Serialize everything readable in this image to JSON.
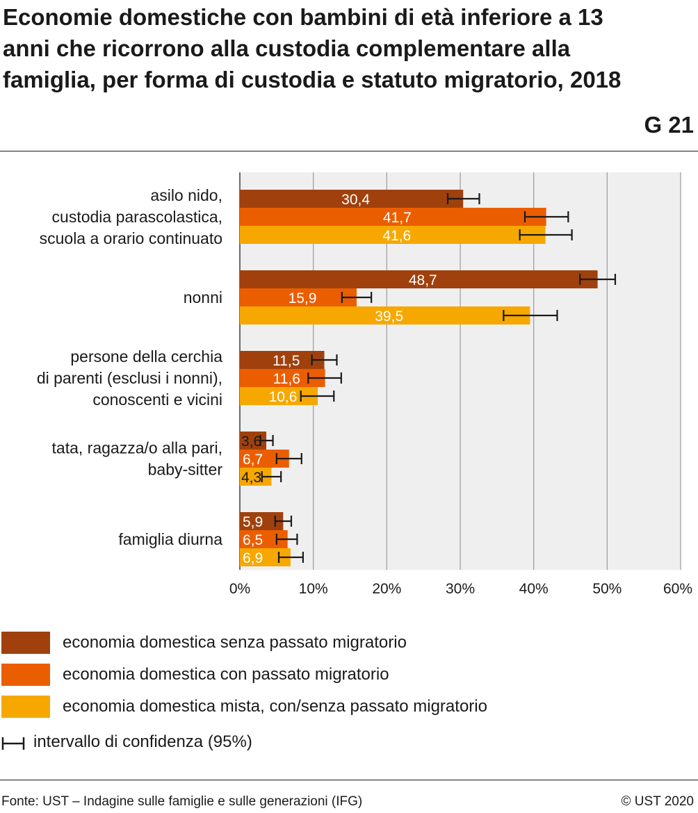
{
  "header": {
    "title": "Economie domestiche con bambini di età inferiore a 13 anni che ricorrono alla custodia complementare alla famiglia, per forma di custodia e statuto migratorio, 2018",
    "code": "G 21"
  },
  "chart_data": {
    "type": "bar",
    "orientation": "horizontal",
    "categories": [
      [
        "asilo nido,",
        "custodia parascolastica,",
        "scuola a orario continuato"
      ],
      [
        "nonni"
      ],
      [
        "persone della cerchia",
        "di parenti (esclusi i nonni),",
        "conoscenti e vicini"
      ],
      [
        "tata, ragazza/o alla pari,",
        "baby-sitter"
      ],
      [
        "famiglia diurna"
      ]
    ],
    "series": [
      {
        "name": "economia domestica senza passato migratorio",
        "color": "#a0410d",
        "values": [
          30.4,
          48.7,
          11.5,
          3.6,
          5.9
        ],
        "labels": [
          "30,4",
          "48,7",
          "11,5",
          "3,6",
          "5,9"
        ],
        "ci_low": [
          28.3,
          46.3,
          9.8,
          2.8,
          4.8
        ],
        "ci_high": [
          32.6,
          51.1,
          13.2,
          4.5,
          7.0
        ]
      },
      {
        "name": "economia domestica con passato migratorio",
        "color": "#eb5e00",
        "values": [
          41.7,
          15.9,
          11.6,
          6.7,
          6.5
        ],
        "labels": [
          "41,7",
          "15,9",
          "11,6",
          "6,7",
          "6,5"
        ],
        "ci_low": [
          38.8,
          13.9,
          9.3,
          5.0,
          5.0
        ],
        "ci_high": [
          44.7,
          17.9,
          13.8,
          8.4,
          7.8
        ]
      },
      {
        "name": "economia domestica mista, con/senza passato migratorio",
        "color": "#f6a800",
        "values": [
          41.6,
          39.5,
          10.6,
          4.3,
          6.9
        ],
        "labels": [
          "41,6",
          "39,5",
          "10,6",
          "4,3",
          "6,9"
        ],
        "ci_low": [
          38.1,
          35.9,
          8.3,
          3.0,
          5.3
        ],
        "ci_high": [
          45.2,
          43.2,
          12.8,
          5.6,
          8.6
        ]
      }
    ],
    "xlim": [
      0,
      60
    ],
    "xticks": [
      "0%",
      "10%",
      "20%",
      "30%",
      "40%",
      "50%",
      "60%"
    ],
    "grid": true,
    "legend_position": "bottom",
    "ci_legend": "intervallo di confidenza (95%)"
  },
  "footer": {
    "source": "Fonte: UST – Indagine sulle famiglie e sulle generazioni (IFG)",
    "copyright": "© UST 2020"
  }
}
